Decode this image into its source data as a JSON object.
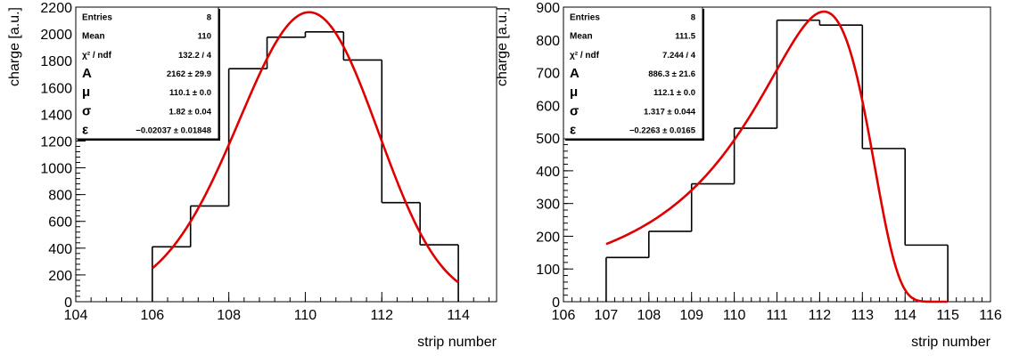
{
  "chart_data": [
    {
      "type": "histogram",
      "xlabel": "strip number",
      "ylabel": "charge [a.u.]",
      "xlim": [
        104,
        115
      ],
      "ylim": [
        0,
        2200
      ],
      "x_ticks": [
        104,
        106,
        108,
        110,
        112,
        114
      ],
      "y_ticks": [
        0,
        200,
        400,
        600,
        800,
        1000,
        1200,
        1400,
        1600,
        1800,
        2000,
        2200
      ],
      "bins": [
        {
          "x_low": 106,
          "x_high": 107,
          "value": 410
        },
        {
          "x_low": 107,
          "x_high": 108,
          "value": 715
        },
        {
          "x_low": 108,
          "x_high": 109,
          "value": 1740
        },
        {
          "x_low": 109,
          "x_high": 110,
          "value": 1975
        },
        {
          "x_low": 110,
          "x_high": 111,
          "value": 2015
        },
        {
          "x_low": 111,
          "x_high": 112,
          "value": 1805
        },
        {
          "x_low": 112,
          "x_high": 113,
          "value": 740
        },
        {
          "x_low": 113,
          "x_high": 114,
          "value": 425
        }
      ],
      "fit": {
        "A": 2162,
        "mu": 110.1,
        "sigma": 1.82,
        "epsilon": -0.02037,
        "x_range": [
          106,
          114
        ],
        "color": "#e00000"
      },
      "stats": [
        {
          "key": "Entries",
          "value": "8"
        },
        {
          "key": "Mean",
          "value": "110"
        },
        {
          "key": "χ² / ndf",
          "value": "132.2 / 4"
        },
        {
          "key": "A",
          "value": "2162 ± 29.9"
        },
        {
          "key": "μ",
          "value": "110.1 ± 0.0"
        },
        {
          "key": "σ",
          "value": "1.82 ± 0.04"
        },
        {
          "key": "ε",
          "value": "−0.02037 ± 0.01848"
        }
      ]
    },
    {
      "type": "histogram",
      "xlabel": "strip number",
      "ylabel": "charge [a.u.]",
      "xlim": [
        106,
        116
      ],
      "ylim": [
        0,
        900
      ],
      "x_ticks": [
        106,
        107,
        108,
        109,
        110,
        111,
        112,
        113,
        114,
        115,
        116
      ],
      "y_ticks": [
        0,
        100,
        200,
        300,
        400,
        500,
        600,
        700,
        800,
        900
      ],
      "bins": [
        {
          "x_low": 107,
          "x_high": 108,
          "value": 135
        },
        {
          "x_low": 108,
          "x_high": 109,
          "value": 215
        },
        {
          "x_low": 109,
          "x_high": 110,
          "value": 360
        },
        {
          "x_low": 110,
          "x_high": 111,
          "value": 530
        },
        {
          "x_low": 111,
          "x_high": 112,
          "value": 860
        },
        {
          "x_low": 112,
          "x_high": 113,
          "value": 845
        },
        {
          "x_low": 113,
          "x_high": 114,
          "value": 468
        },
        {
          "x_low": 114,
          "x_high": 115,
          "value": 173
        }
      ],
      "fit": {
        "A": 886.3,
        "mu": 112.1,
        "sigma": 1.317,
        "epsilon": -0.2263,
        "x_range": [
          107,
          115
        ],
        "color": "#e00000"
      },
      "stats": [
        {
          "key": "Entries",
          "value": "8"
        },
        {
          "key": "Mean",
          "value": "111.5"
        },
        {
          "key": "χ² / ndf",
          "value": "7.244 / 4"
        },
        {
          "key": "A",
          "value": "886.3 ± 21.6"
        },
        {
          "key": "μ",
          "value": "112.1 ± 0.0"
        },
        {
          "key": "σ",
          "value": "1.317 ± 0.044"
        },
        {
          "key": "ε",
          "value": "−0.2263 ± 0.0165"
        }
      ]
    }
  ]
}
